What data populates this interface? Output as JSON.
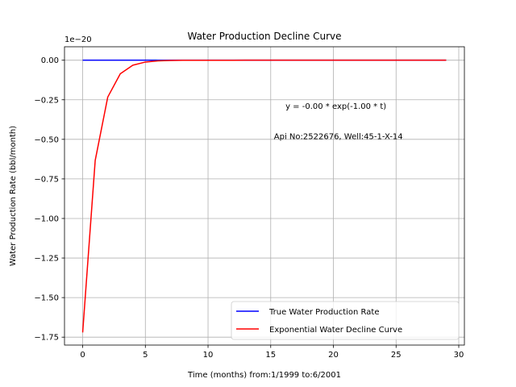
{
  "chart_data": {
    "type": "line",
    "title": "Water Production Decline Curve",
    "xlabel": "Time (months) from:1/1999 to:6/2001",
    "ylabel": "Water Production Rate (bbl/month)",
    "offset_label": "1e−20",
    "xlim": [
      -1.45,
      30.45
    ],
    "ylim": [
      -1.8,
      0.085
    ],
    "xticks": [
      0,
      5,
      10,
      15,
      20,
      25,
      30
    ],
    "yticks": [
      0.0,
      -0.25,
      -0.5,
      -0.75,
      -1.0,
      -1.25,
      -1.5,
      -1.75
    ],
    "xtick_labels": [
      "0",
      "5",
      "10",
      "15",
      "20",
      "25",
      "30"
    ],
    "ytick_labels": [
      "0.00",
      "−0.25",
      "−0.50",
      "−0.75",
      "−1.00",
      "−1.25",
      "−1.50",
      "−1.75"
    ],
    "grid": true,
    "legend_position": "lower-right",
    "series": [
      {
        "name": "True Water Production Rate",
        "color": "#0000ff",
        "x": [
          0,
          29
        ],
        "y": [
          0,
          0
        ]
      },
      {
        "name": "Exponential Water Decline Curve",
        "color": "#ff0000",
        "x": [
          0,
          1,
          2,
          3,
          4,
          5,
          6,
          7,
          8,
          9,
          10,
          11,
          12,
          13,
          14,
          15,
          16,
          17,
          18,
          19,
          20,
          21,
          22,
          23,
          24,
          25,
          26,
          27,
          28,
          29
        ],
        "y": [
          -1.72,
          -0.633,
          -0.233,
          -0.0856,
          -0.0315,
          -0.0116,
          -0.00426,
          -0.00157,
          -0.00058,
          -0.00021,
          -8e-05,
          -3e-05,
          -1e-05,
          0,
          0,
          0,
          0,
          0,
          0,
          0,
          0,
          0,
          0,
          0,
          0,
          0,
          0,
          0,
          0,
          0
        ]
      }
    ],
    "annotations": [
      {
        "text": "y = -0.00 * exp(-1.00 * t)",
        "x": 20.2,
        "y": -0.29
      },
      {
        "text": "Api No:2522676, Well:45-1-X-14",
        "x": 20.4,
        "y": -0.48
      }
    ]
  }
}
